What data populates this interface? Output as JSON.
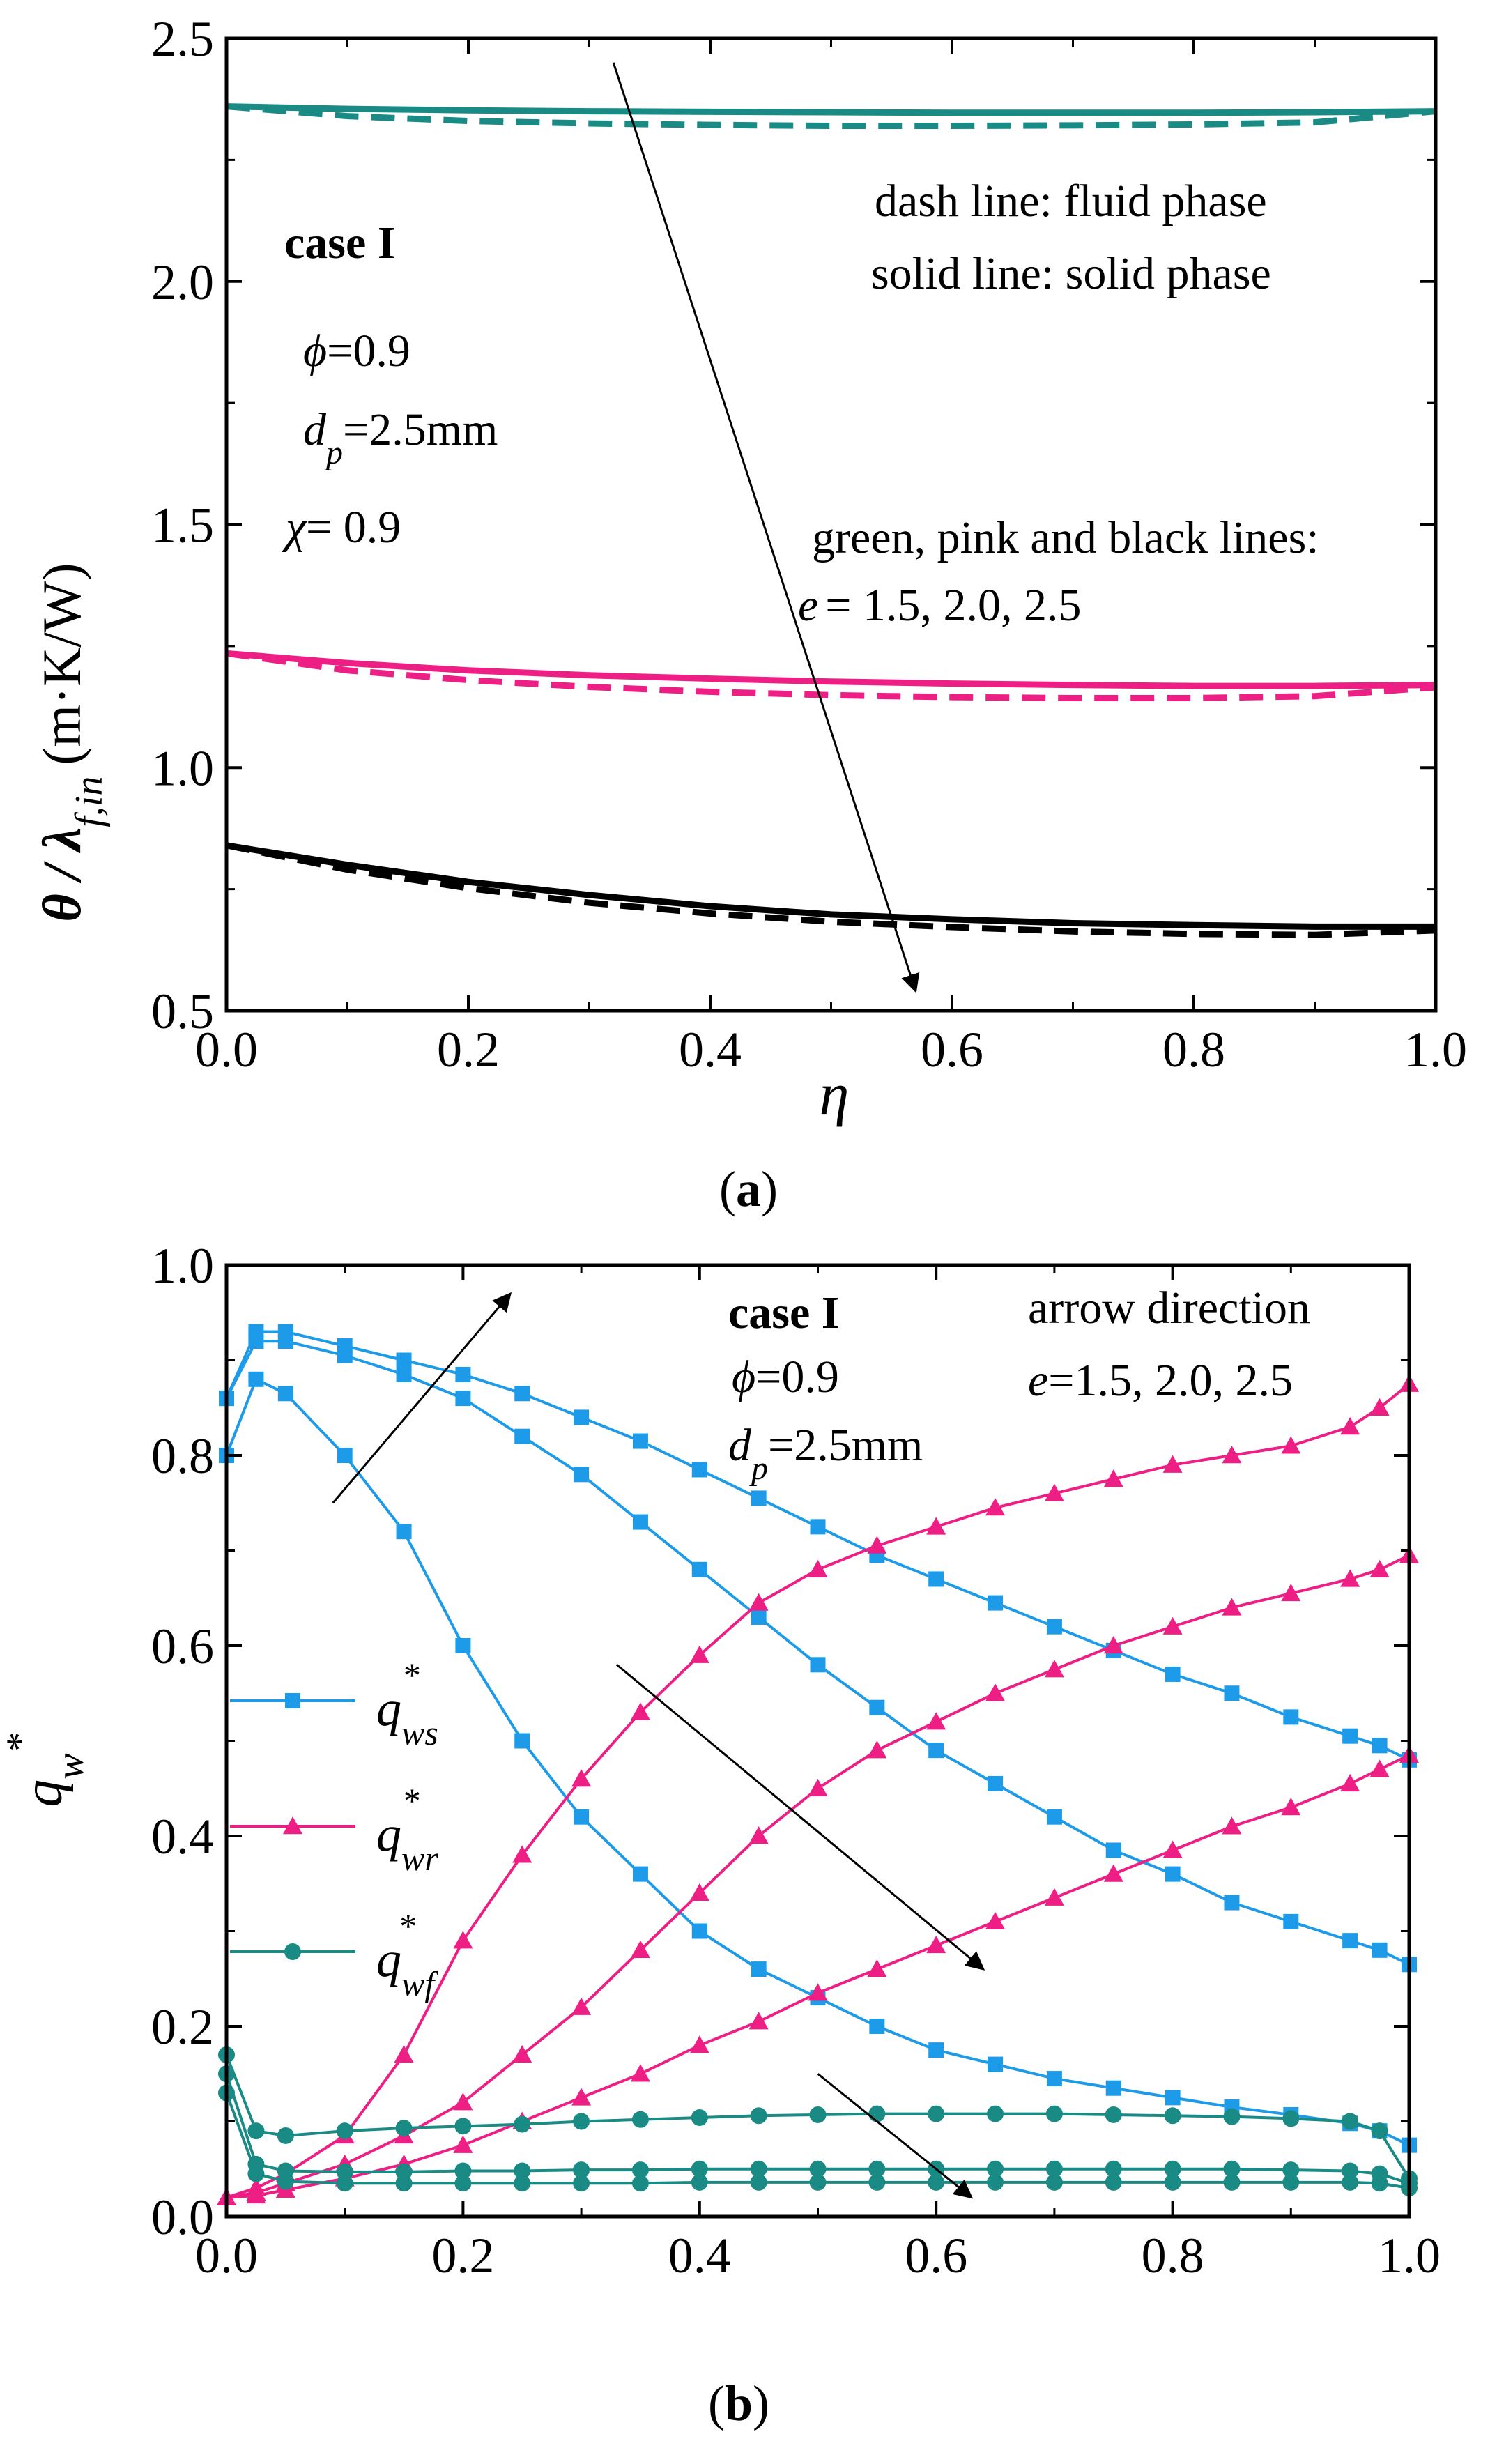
{
  "chart_data": [
    {
      "type": "line",
      "panel_label": "a",
      "xlabel": "η",
      "ylabel": "θ / λ",
      "ylabel_sub": "f,in",
      "ylabel_unit": "(m·K/W)",
      "xlim": [
        0.0,
        1.0
      ],
      "ylim": [
        0.5,
        2.5
      ],
      "xticks": [
        "0.0",
        "0.2",
        "0.4",
        "0.6",
        "0.8",
        "1.0"
      ],
      "yticks": [
        "0.5",
        "1.0",
        "1.5",
        "2.0",
        "2.5"
      ],
      "annotations": {
        "case": "case I",
        "phi": "=0.9",
        "dp": "=2.5mm",
        "chi": "= 0.9",
        "dash_note": "dash line: fluid phase",
        "solid_note": "solid line: solid phase",
        "color_note": "green, pink and black lines:",
        "e_note": "= 1.5, 2.0, 2.5"
      },
      "x": [
        0.0,
        0.1,
        0.2,
        0.3,
        0.4,
        0.5,
        0.6,
        0.7,
        0.8,
        0.9,
        1.0
      ],
      "series": [
        {
          "name": "e=1.5 solid phase",
          "color": "#1a8a84",
          "dash": false,
          "values": [
            2.36,
            2.355,
            2.352,
            2.35,
            2.349,
            2.348,
            2.347,
            2.347,
            2.347,
            2.348,
            2.35
          ]
        },
        {
          "name": "e=1.5 fluid phase",
          "color": "#1a8a84",
          "dash": true,
          "values": [
            2.36,
            2.34,
            2.33,
            2.325,
            2.322,
            2.32,
            2.32,
            2.321,
            2.323,
            2.327,
            2.35
          ]
        },
        {
          "name": "e=2.0 solid phase",
          "color": "#ee1f84",
          "dash": false,
          "values": [
            1.235,
            1.215,
            1.2,
            1.19,
            1.183,
            1.177,
            1.173,
            1.17,
            1.168,
            1.168,
            1.17
          ]
        },
        {
          "name": "e=2.0 fluid phase",
          "color": "#ee1f84",
          "dash": true,
          "values": [
            1.235,
            1.2,
            1.18,
            1.166,
            1.156,
            1.149,
            1.145,
            1.143,
            1.143,
            1.147,
            1.165
          ]
        },
        {
          "name": "e=2.5 solid phase",
          "color": "#000000",
          "dash": false,
          "values": [
            0.84,
            0.8,
            0.765,
            0.738,
            0.715,
            0.698,
            0.688,
            0.68,
            0.676,
            0.673,
            0.673
          ]
        },
        {
          "name": "e=2.5 fluid phase",
          "color": "#000000",
          "dash": true,
          "values": [
            0.84,
            0.79,
            0.752,
            0.722,
            0.7,
            0.683,
            0.672,
            0.663,
            0.658,
            0.656,
            0.665
          ]
        }
      ],
      "arrow": {
        "from": [
          0.32,
          2.45
        ],
        "to": [
          0.57,
          0.54
        ]
      }
    },
    {
      "type": "line",
      "panel_label": "b",
      "ylabel": "q",
      "ylabel_sub": "w",
      "ylabel_sup": "*",
      "xlim": [
        0.0,
        1.0
      ],
      "ylim": [
        0.0,
        1.0
      ],
      "xticks": [
        "0.0",
        "0.2",
        "0.4",
        "0.6",
        "0.8",
        "1.0"
      ],
      "yticks": [
        "0.0",
        "0.2",
        "0.4",
        "0.6",
        "0.8",
        "1.0"
      ],
      "annotations": {
        "case": "case I",
        "phi": "=0.9",
        "dp": "=2.5mm",
        "arrow_note": "arrow direction",
        "e_note": "=1.5, 2.0, 2.5"
      },
      "legend": [
        {
          "sym": "q",
          "sub": "ws",
          "sup": "*",
          "color": "#1e9be8",
          "marker": "square"
        },
        {
          "sym": "q",
          "sub": "wr",
          "sup": "*",
          "color": "#ee1f84",
          "marker": "triangle"
        },
        {
          "sym": "q",
          "sub": "wf",
          "sup": "*",
          "color": "#1a8a84",
          "marker": "circle"
        }
      ],
      "x": [
        0.0,
        0.025,
        0.05,
        0.1,
        0.15,
        0.2,
        0.25,
        0.3,
        0.35,
        0.4,
        0.45,
        0.5,
        0.55,
        0.6,
        0.65,
        0.7,
        0.75,
        0.8,
        0.85,
        0.9,
        0.95,
        0.975,
        1.0
      ],
      "series": [
        {
          "name": "q*ws e=1.5",
          "color": "#1e9be8",
          "marker": "square",
          "values": [
            0.8,
            0.88,
            0.865,
            0.8,
            0.72,
            0.6,
            0.5,
            0.42,
            0.36,
            0.3,
            0.26,
            0.23,
            0.2,
            0.175,
            0.16,
            0.145,
            0.135,
            0.125,
            0.115,
            0.107,
            0.098,
            0.09,
            0.075
          ]
        },
        {
          "name": "q*ws e=2.0",
          "color": "#1e9be8",
          "marker": "square",
          "values": [
            0.86,
            0.92,
            0.92,
            0.905,
            0.885,
            0.86,
            0.82,
            0.78,
            0.73,
            0.68,
            0.63,
            0.58,
            0.535,
            0.49,
            0.455,
            0.42,
            0.385,
            0.36,
            0.33,
            0.31,
            0.29,
            0.28,
            0.265
          ]
        },
        {
          "name": "q*ws e=2.5",
          "color": "#1e9be8",
          "marker": "square",
          "values": [
            0.86,
            0.93,
            0.93,
            0.915,
            0.9,
            0.885,
            0.865,
            0.84,
            0.815,
            0.785,
            0.755,
            0.725,
            0.695,
            0.67,
            0.645,
            0.62,
            0.595,
            0.57,
            0.55,
            0.525,
            0.505,
            0.495,
            0.48
          ]
        },
        {
          "name": "q*wr e=1.5",
          "color": "#ee1f84",
          "marker": "triangle",
          "values": [
            0.02,
            0.03,
            0.045,
            0.085,
            0.17,
            0.29,
            0.38,
            0.46,
            0.53,
            0.59,
            0.645,
            0.68,
            0.705,
            0.725,
            0.745,
            0.76,
            0.775,
            0.79,
            0.8,
            0.81,
            0.83,
            0.85,
            0.875
          ]
        },
        {
          "name": "q*wr e=2.0",
          "color": "#ee1f84",
          "marker": "triangle",
          "values": [
            0.02,
            0.025,
            0.035,
            0.055,
            0.085,
            0.12,
            0.17,
            0.22,
            0.28,
            0.34,
            0.4,
            0.45,
            0.49,
            0.52,
            0.55,
            0.575,
            0.6,
            0.62,
            0.64,
            0.655,
            0.67,
            0.68,
            0.695
          ]
        },
        {
          "name": "q*wr e=2.5",
          "color": "#ee1f84",
          "marker": "triangle",
          "values": [
            0.02,
            0.022,
            0.028,
            0.04,
            0.055,
            0.075,
            0.1,
            0.125,
            0.15,
            0.18,
            0.205,
            0.235,
            0.26,
            0.285,
            0.31,
            0.335,
            0.36,
            0.385,
            0.41,
            0.43,
            0.455,
            0.47,
            0.485
          ]
        },
        {
          "name": "q*wf e=1.5",
          "color": "#1a8a84",
          "marker": "circle",
          "values": [
            0.17,
            0.09,
            0.085,
            0.09,
            0.093,
            0.095,
            0.097,
            0.1,
            0.102,
            0.104,
            0.106,
            0.107,
            0.108,
            0.108,
            0.108,
            0.108,
            0.107,
            0.106,
            0.105,
            0.103,
            0.1,
            0.09,
            0.04
          ]
        },
        {
          "name": "q*wf e=2.0",
          "color": "#1a8a84",
          "marker": "circle",
          "values": [
            0.15,
            0.055,
            0.048,
            0.047,
            0.047,
            0.048,
            0.048,
            0.049,
            0.049,
            0.05,
            0.05,
            0.05,
            0.05,
            0.05,
            0.05,
            0.05,
            0.05,
            0.05,
            0.05,
            0.049,
            0.048,
            0.045,
            0.035
          ]
        },
        {
          "name": "q*wf e=2.5",
          "color": "#1a8a84",
          "marker": "circle",
          "values": [
            0.13,
            0.045,
            0.037,
            0.035,
            0.035,
            0.035,
            0.035,
            0.035,
            0.035,
            0.036,
            0.036,
            0.036,
            0.036,
            0.036,
            0.036,
            0.036,
            0.036,
            0.036,
            0.036,
            0.036,
            0.036,
            0.035,
            0.03
          ]
        }
      ],
      "arrows": [
        {
          "from": [
            0.09,
            0.75
          ],
          "to": [
            0.24,
            0.97
          ]
        },
        {
          "from": [
            0.33,
            0.58
          ],
          "to": [
            0.64,
            0.26
          ]
        },
        {
          "from": [
            0.5,
            0.15
          ],
          "to": [
            0.63,
            0.02
          ]
        }
      ]
    }
  ]
}
